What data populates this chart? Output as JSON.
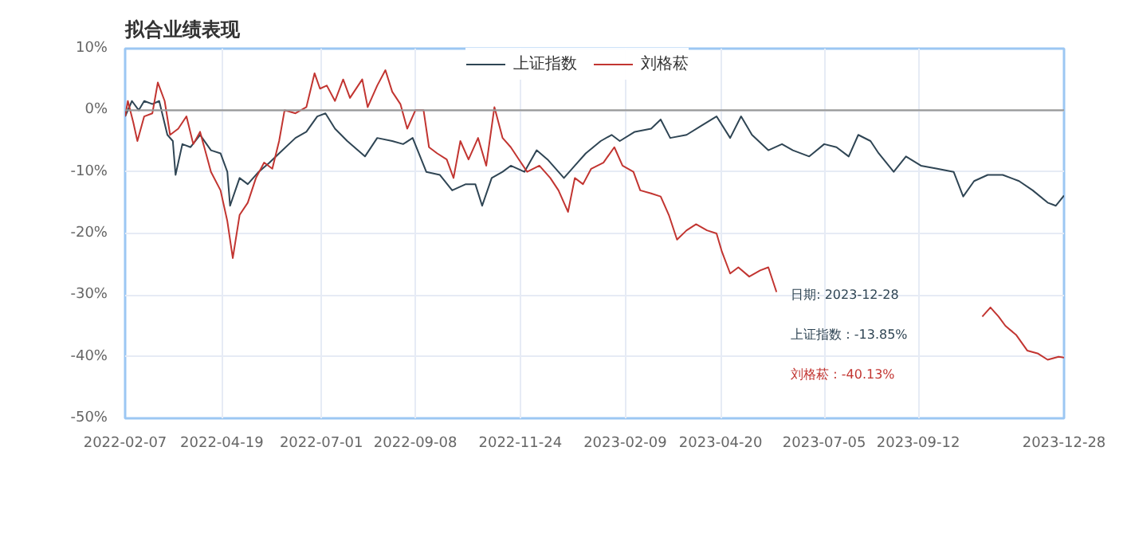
{
  "chart_data": {
    "type": "line",
    "title": "拟合业绩表现",
    "xlim": [
      "2022-02-07",
      "2023-12-28"
    ],
    "xticks": [
      "2022-02-07",
      "2022-04-19",
      "2022-07-01",
      "2022-09-08",
      "2022-11-24",
      "2023-02-09",
      "2023-04-20",
      "2023-07-05",
      "2023-09-12",
      "2023-12-28"
    ],
    "ylim": [
      -50,
      10
    ],
    "yticks": [
      {
        "value": -50,
        "label": "-50%"
      },
      {
        "value": -40,
        "label": "-40%"
      },
      {
        "value": -30,
        "label": "-30%"
      },
      {
        "value": -20,
        "label": "-20%"
      },
      {
        "value": -10,
        "label": "-10%"
      },
      {
        "value": 0,
        "label": "0%"
      },
      {
        "value": 10,
        "label": "10%"
      }
    ],
    "grid": true,
    "legend": "top",
    "ref_lines": [
      {
        "axis": "y",
        "value": 0,
        "color": "#999999"
      }
    ],
    "annotations": [
      "日期: 2023-12-28",
      "上证指数 : -13.85%",
      "刘格菘 : -40.13%"
    ],
    "series": [
      {
        "name": "上证指数",
        "color": "#2f4554",
        "x": [
          "2022-02-07",
          "2022-02-12",
          "2022-02-17",
          "2022-02-21",
          "2022-02-27",
          "2022-03-04",
          "2022-03-10",
          "2022-03-14",
          "2022-03-16",
          "2022-03-21",
          "2022-03-27",
          "2022-04-03",
          "2022-04-11",
          "2022-04-18",
          "2022-04-23",
          "2022-04-25",
          "2022-05-02",
          "2022-05-08",
          "2022-05-16",
          "2022-05-24",
          "2022-05-31",
          "2022-06-12",
          "2022-06-20",
          "2022-06-28",
          "2022-07-04",
          "2022-07-11",
          "2022-07-20",
          "2022-08-02",
          "2022-08-11",
          "2022-08-22",
          "2022-08-30",
          "2022-09-06",
          "2022-09-16",
          "2022-09-26",
          "2022-10-05",
          "2022-10-15",
          "2022-10-22",
          "2022-10-27",
          "2022-11-03",
          "2022-11-11",
          "2022-11-17",
          "2022-11-27",
          "2022-12-06",
          "2022-12-14",
          "2022-12-26",
          "2023-01-03",
          "2023-01-11",
          "2023-01-22",
          "2023-01-30",
          "2023-02-05",
          "2023-02-16",
          "2023-02-28",
          "2023-03-07",
          "2023-03-14",
          "2023-03-26",
          "2023-04-06",
          "2023-04-17",
          "2023-04-27",
          "2023-05-05",
          "2023-05-13",
          "2023-05-25",
          "2023-06-04",
          "2023-06-12",
          "2023-06-24",
          "2023-07-05",
          "2023-07-14",
          "2023-07-23",
          "2023-07-30",
          "2023-08-08",
          "2023-08-14",
          "2023-08-25",
          "2023-09-03",
          "2023-09-14",
          "2023-09-26",
          "2023-10-08",
          "2023-10-15",
          "2023-10-23",
          "2023-11-02",
          "2023-11-13",
          "2023-11-25",
          "2023-12-05",
          "2023-12-16",
          "2023-12-22",
          "2023-12-28"
        ],
        "values": [
          -1,
          1.5,
          0,
          1.5,
          1,
          1.5,
          -4,
          -5,
          -10.5,
          -5.5,
          -6,
          -4,
          -6.5,
          -7,
          -10,
          -15.5,
          -11,
          -12,
          -10,
          -8.5,
          -7,
          -4.5,
          -3.5,
          -1,
          -0.5,
          -3,
          -5,
          -7.5,
          -4.5,
          -5,
          -5.5,
          -4.5,
          -10,
          -10.5,
          -13,
          -12,
          -12,
          -15.5,
          -11,
          -10,
          -9,
          -10,
          -6.5,
          -8,
          -11,
          -9,
          -7,
          -5,
          -4,
          -5,
          -3.5,
          -3,
          -1.5,
          -4.5,
          -4,
          -2.5,
          -1,
          -4.5,
          -1,
          -4,
          -6.5,
          -5.5,
          -6.5,
          -7.5,
          -5.5,
          -6,
          -7.5,
          -4,
          -5,
          -7,
          -10,
          -7.5,
          -9,
          -9.5,
          -10,
          -14,
          -11.5,
          -10.5,
          -10.5,
          -11.5,
          -13,
          -15,
          -15.5,
          -13.85
        ]
      },
      {
        "name": "刘格菘",
        "color": "#c23531",
        "x": [
          "2022-02-07",
          "2022-02-09",
          "2022-02-13",
          "2022-02-16",
          "2022-02-21",
          "2022-02-27",
          "2022-03-03",
          "2022-03-08",
          "2022-03-12",
          "2022-03-18",
          "2022-03-24",
          "2022-03-29",
          "2022-04-03",
          "2022-04-11",
          "2022-04-18",
          "2022-04-23",
          "2022-04-27",
          "2022-05-02",
          "2022-05-08",
          "2022-05-14",
          "2022-05-20",
          "2022-05-26",
          "2022-05-31",
          "2022-06-04",
          "2022-06-12",
          "2022-06-20",
          "2022-06-26",
          "2022-06-30",
          "2022-07-05",
          "2022-07-11",
          "2022-07-17",
          "2022-07-22",
          "2022-07-31",
          "2022-08-04",
          "2022-08-11",
          "2022-08-17",
          "2022-08-22",
          "2022-08-28",
          "2022-09-02",
          "2022-09-08",
          "2022-09-14",
          "2022-09-18",
          "2022-09-24",
          "2022-10-01",
          "2022-10-06",
          "2022-10-11",
          "2022-10-17",
          "2022-10-24",
          "2022-10-30",
          "2022-11-05",
          "2022-11-11",
          "2022-11-17",
          "2022-11-23",
          "2022-11-29",
          "2022-12-08",
          "2022-12-16",
          "2022-12-22",
          "2022-12-29",
          "2023-01-03",
          "2023-01-09",
          "2023-01-15",
          "2023-01-24",
          "2023-02-01",
          "2023-02-07",
          "2023-02-15",
          "2023-02-20",
          "2023-02-28",
          "2023-03-07",
          "2023-03-13",
          "2023-03-19",
          "2023-03-26",
          "2023-04-02",
          "2023-04-10",
          "2023-04-17",
          "2023-04-21",
          "2023-04-27",
          "2023-05-03",
          "2023-05-11",
          "2023-05-19",
          "2023-05-25",
          "2023-05-31",
          "2023-07-15",
          "2023-10-29",
          "2023-11-04",
          "2023-11-10",
          "2023-11-15",
          "2023-11-23",
          "2023-12-01",
          "2023-12-09",
          "2023-12-16",
          "2023-12-24",
          "2023-12-28"
        ],
        "values": [
          -1,
          1.5,
          -2,
          -5,
          -1,
          -0.5,
          4.5,
          1.5,
          -4,
          -3,
          -1,
          -5.5,
          -3.5,
          -10,
          -13,
          -18,
          -24,
          -17,
          -15,
          -11,
          -8.5,
          -9.5,
          -5,
          0,
          -0.5,
          0.5,
          6,
          3.5,
          4,
          1.5,
          5,
          2,
          5,
          0.5,
          4,
          6.5,
          3,
          1,
          -3,
          0,
          0,
          -6,
          -7,
          -8,
          -11,
          -5,
          -8,
          -4.5,
          -9,
          0.5,
          -4.5,
          -6,
          -8,
          -10,
          -9,
          -11,
          -13,
          -16.5,
          -11,
          -12,
          -9.5,
          -8.5,
          -6,
          -9,
          -10,
          -13,
          -13.5,
          -14,
          -17,
          -21,
          -19.5,
          -18.5,
          -19.5,
          -20,
          -23,
          -26.5,
          -25.5,
          -27,
          -26,
          -25.5,
          -29.5,
          null,
          -33.5,
          -32,
          -33.5,
          -35,
          -36.5,
          -39,
          -39.5,
          -40.5,
          -40,
          -40.13
        ]
      }
    ]
  }
}
